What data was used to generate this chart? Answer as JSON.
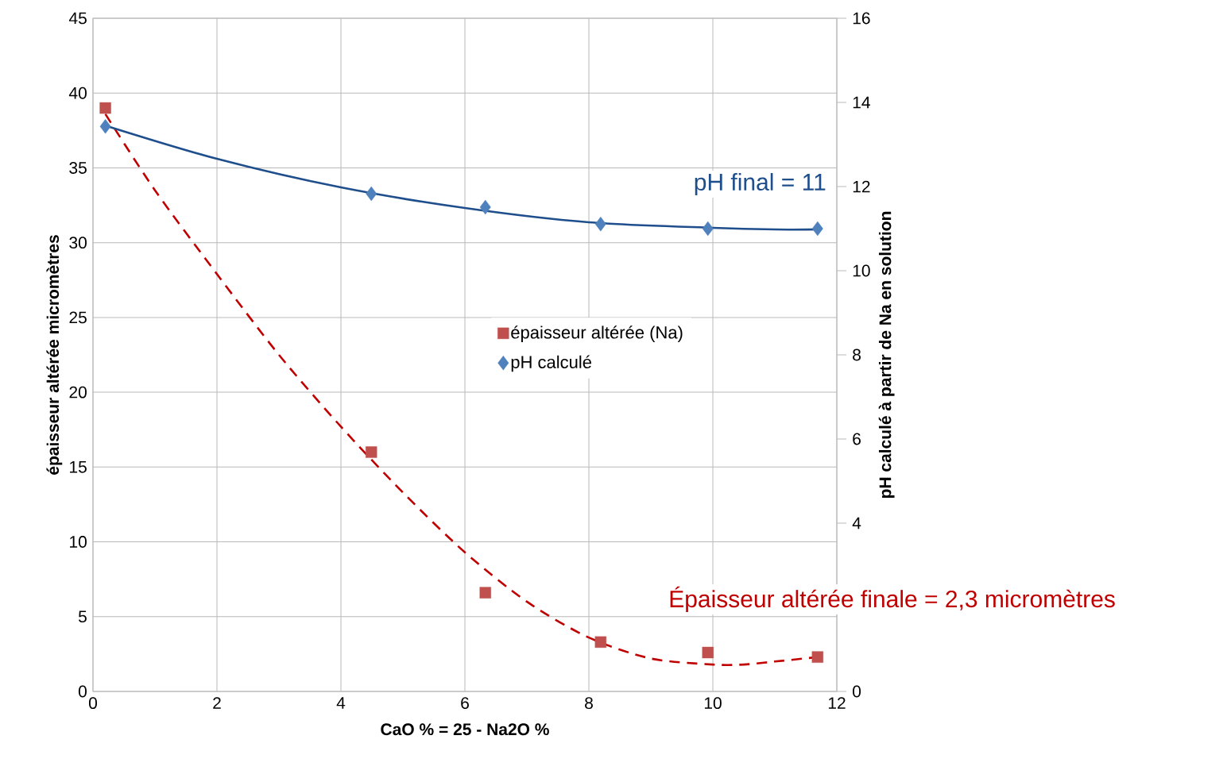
{
  "chart_data": {
    "type": "scatter",
    "xlabel": "CaO % = 25 - Na2O %",
    "ylabel": "épaisseur altérée micromètres",
    "y2label": "pH calculé à partir de Na en solution",
    "annotations": [
      "pH final = 11",
      "Épaisseur altérée finale = 2,3 micromètres"
    ],
    "series": [
      {
        "name": "épaisseur altérée (Na)",
        "marker": "square",
        "color": "#c0504d",
        "x": [
          0.2,
          4.49,
          6.33,
          8.19,
          9.92,
          11.69
        ],
        "values": [
          39.0,
          16.0,
          6.6,
          3.3,
          2.6,
          2.3
        ]
      },
      {
        "name": "pH calculé",
        "marker": "diamond",
        "color": "#4f81bd",
        "axis": "y2",
        "x": [
          0.2,
          4.49,
          6.33,
          8.19,
          9.92,
          11.69
        ],
        "values": [
          13.43,
          11.83,
          11.51,
          11.11,
          11.0,
          11.0
        ]
      },
      {
        "type": "line",
        "line_style": "dashed",
        "color": "#c00000",
        "x": [
          0.2,
          1,
          2,
          3,
          4,
          5,
          6,
          7,
          8,
          9,
          10,
          10.5,
          11,
          11.7
        ],
        "values": [
          38.6,
          33.5,
          27.9,
          22.5,
          17.7,
          13.3,
          9.3,
          6.0,
          3.6,
          2.2,
          1.8,
          1.8,
          2.0,
          2.3
        ]
      },
      {
        "type": "line",
        "line_style": "solid",
        "color": "#1f4e8c",
        "axis": "y2",
        "x": [
          0.2,
          2,
          4,
          6,
          8,
          10,
          11,
          11.7
        ],
        "values": [
          13.45,
          12.66,
          11.98,
          11.49,
          11.15,
          11.02,
          10.98,
          10.98
        ]
      }
    ],
    "xlim": [
      0,
      12
    ],
    "xticks": [
      0,
      2,
      4,
      6,
      8,
      10,
      12
    ],
    "ylim": [
      0,
      45
    ],
    "yticks": [
      0,
      5,
      10,
      15,
      20,
      25,
      30,
      35,
      40,
      45
    ],
    "y2lim": [
      0,
      16
    ],
    "y2ticks": [
      0,
      {
        "value": 2,
        "label": null
      },
      4,
      6,
      8,
      10,
      12,
      14,
      16
    ],
    "grid": true,
    "legend": "center"
  }
}
